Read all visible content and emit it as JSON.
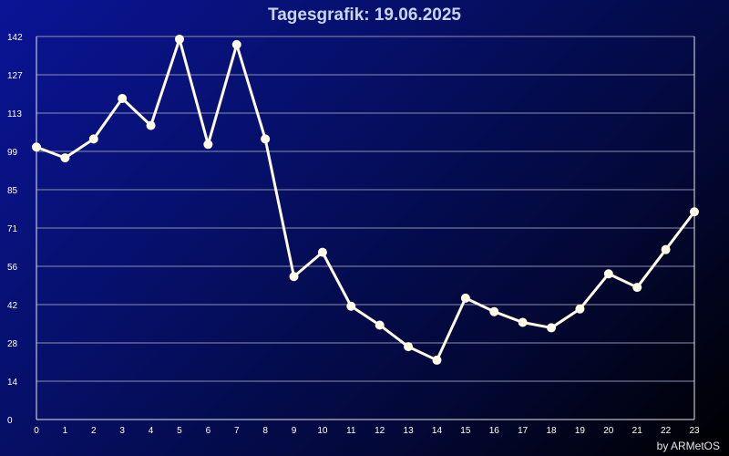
{
  "chart_data": {
    "type": "line",
    "title": "Tagesgrafik: 19.06.2025",
    "credit": "by ARMetOS",
    "x": [
      0,
      1,
      2,
      3,
      4,
      5,
      6,
      7,
      8,
      9,
      10,
      11,
      12,
      13,
      14,
      15,
      16,
      17,
      18,
      19,
      20,
      21,
      22,
      23
    ],
    "series": [
      {
        "values": [
          101,
          97,
          104,
          119,
          109,
          141,
          102,
          139,
          104,
          53,
          62,
          42,
          35,
          27,
          22,
          45,
          40,
          36,
          34,
          41,
          54,
          49,
          63,
          77
        ]
      }
    ],
    "y_ticks": [
      "0",
      "14",
      "28",
      "42",
      "56",
      "71",
      "85",
      "99",
      "113",
      "127",
      "142"
    ],
    "x_ticks": [
      "0",
      "1",
      "2",
      "3",
      "4",
      "5",
      "6",
      "7",
      "8",
      "9",
      "10",
      "11",
      "12",
      "13",
      "14",
      "15",
      "16",
      "17",
      "18",
      "19",
      "20",
      "21",
      "22",
      "23"
    ],
    "ylim": [
      0,
      142
    ],
    "xlim": [
      0,
      23
    ],
    "grid": true,
    "colors": {
      "line": "#fffbe6",
      "marker": "#fffbe6",
      "grid": "#8a8fb0",
      "axis": "#e8e8e8",
      "tick_text": "#ffffff"
    }
  }
}
